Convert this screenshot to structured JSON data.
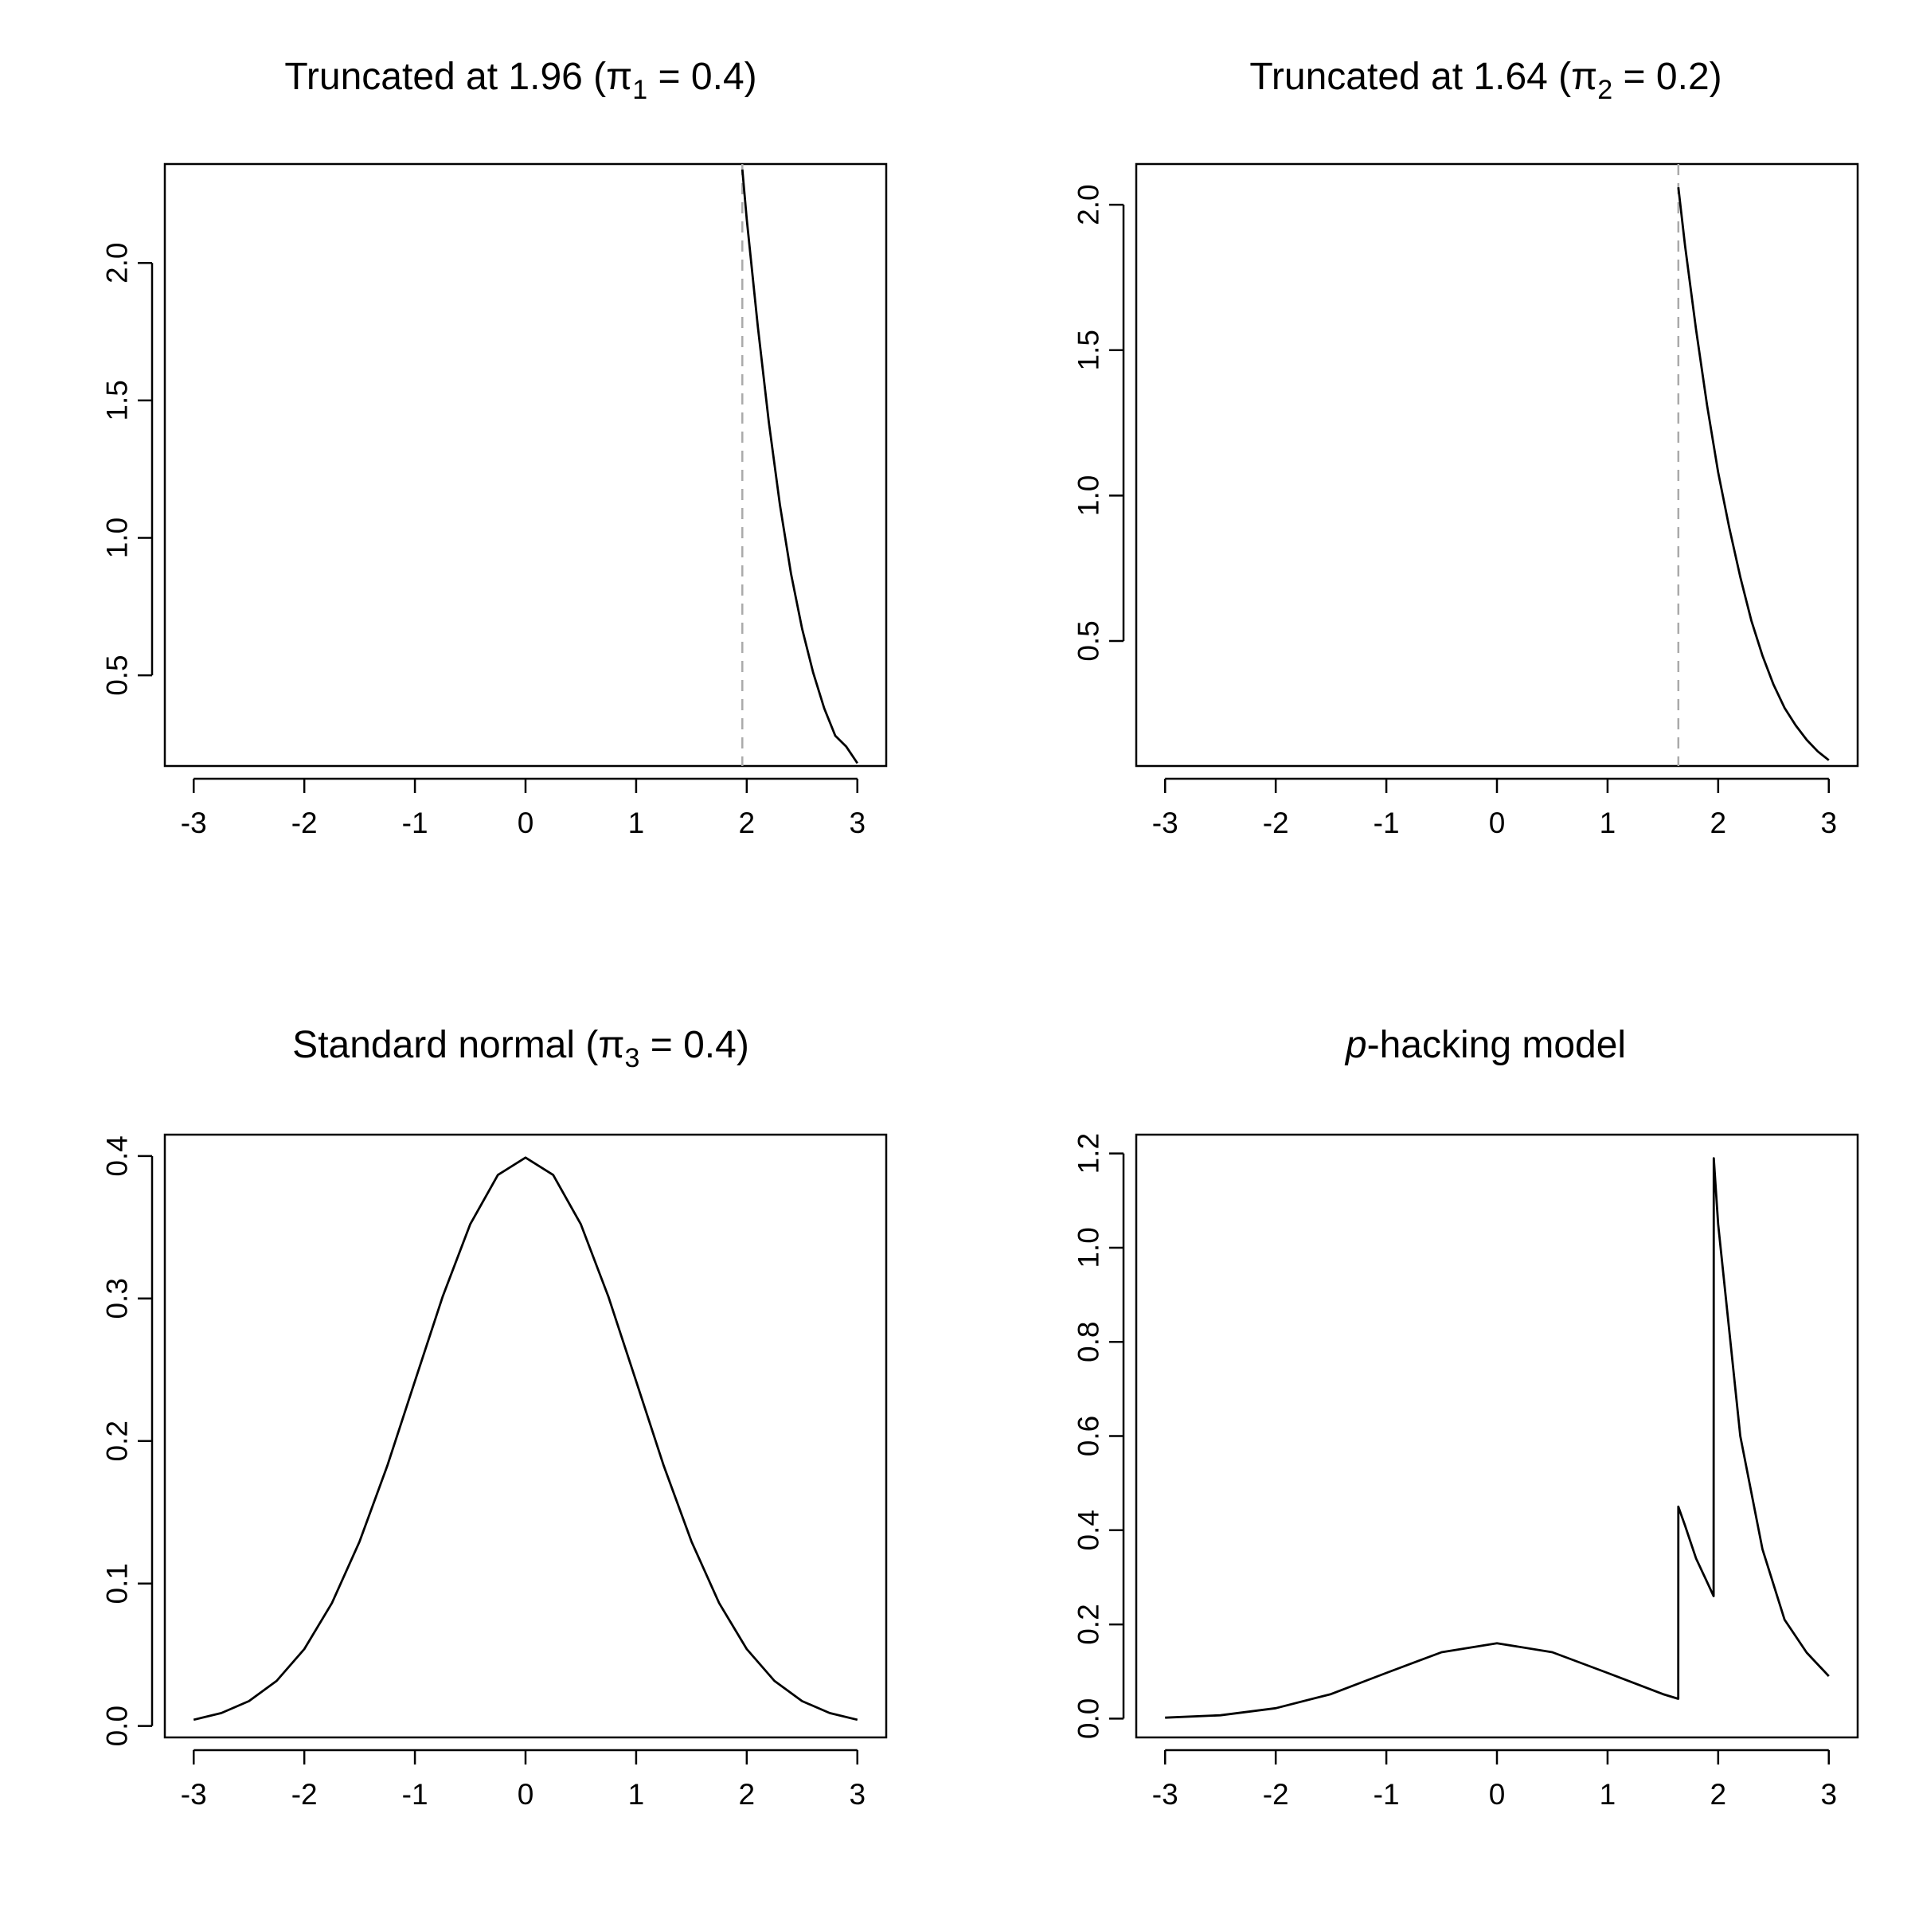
{
  "chart_data": [
    {
      "type": "line",
      "title": "Truncated at 1.96 (π₁ = 0.4)",
      "title_parts": {
        "before": "Truncated at 1.96 (π",
        "sub": "1",
        "after": " = 0.4)"
      },
      "xlabel": "",
      "ylabel": "",
      "xlim": [
        -3,
        3
      ],
      "ylim": [
        0.17,
        2.36
      ],
      "x_ticks": [
        "-3",
        "-2",
        "-1",
        "0",
        "1",
        "2",
        "3"
      ],
      "y_ticks": [
        "0.5",
        "1.0",
        "1.5",
        "2.0"
      ],
      "grid": false,
      "reference_line": {
        "x": 1.96,
        "style": "dashed",
        "color": "#aaaaaa"
      },
      "series": [
        {
          "x": [
            1.96,
            2.0,
            2.1,
            2.2,
            2.3,
            2.4,
            2.5,
            2.6,
            2.7,
            2.8,
            2.9,
            3.0
          ],
          "y": [
            2.34,
            2.16,
            1.77,
            1.42,
            1.12,
            0.87,
            0.67,
            0.51,
            0.38,
            0.28,
            0.24,
            0.18
          ]
        }
      ]
    },
    {
      "type": "line",
      "title": "Truncated at 1.64 (π₂ = 0.2)",
      "title_parts": {
        "before": "Truncated at 1.64 (π",
        "sub": "2",
        "after": " = 0.2)"
      },
      "xlabel": "",
      "ylabel": "",
      "xlim": [
        -3,
        3
      ],
      "ylim": [
        0.07,
        2.14
      ],
      "x_ticks": [
        "-3",
        "-2",
        "-1",
        "0",
        "1",
        "2",
        "3"
      ],
      "y_ticks": [
        "0.5",
        "1.0",
        "1.5",
        "2.0"
      ],
      "grid": false,
      "reference_line": {
        "x": 1.64,
        "style": "dashed",
        "color": "#aaaaaa"
      },
      "series": [
        {
          "x": [
            1.64,
            1.7,
            1.8,
            1.9,
            2.0,
            2.1,
            2.2,
            2.3,
            2.4,
            2.5,
            2.6,
            2.7,
            2.8,
            2.9,
            3.0
          ],
          "y": [
            2.06,
            1.86,
            1.57,
            1.31,
            1.08,
            0.89,
            0.72,
            0.57,
            0.45,
            0.35,
            0.27,
            0.21,
            0.16,
            0.12,
            0.09
          ]
        }
      ]
    },
    {
      "type": "line",
      "title": "Standard normal (π₃ = 0.4)",
      "title_parts": {
        "before": "Standard normal (π",
        "sub": "3",
        "after": " = 0.4)"
      },
      "xlabel": "",
      "ylabel": "",
      "xlim": [
        -3,
        3
      ],
      "ylim": [
        -0.008,
        0.415
      ],
      "x_ticks": [
        "-3",
        "-2",
        "-1",
        "0",
        "1",
        "2",
        "3"
      ],
      "y_ticks": [
        "0.0",
        "0.1",
        "0.2",
        "0.3",
        "0.4"
      ],
      "grid": false,
      "series": [
        {
          "x": [
            -3.0,
            -2.75,
            -2.5,
            -2.25,
            -2.0,
            -1.75,
            -1.5,
            -1.25,
            -1.0,
            -0.75,
            -0.5,
            -0.25,
            0.0,
            0.25,
            0.5,
            0.75,
            1.0,
            1.25,
            1.5,
            1.75,
            2.0,
            2.25,
            2.5,
            2.75,
            3.0
          ],
          "y": [
            0.0044,
            0.0091,
            0.0175,
            0.0317,
            0.054,
            0.0863,
            0.1295,
            0.1826,
            0.242,
            0.3011,
            0.3521,
            0.3867,
            0.3989,
            0.3867,
            0.3521,
            0.3011,
            0.242,
            0.1826,
            0.1295,
            0.0863,
            0.054,
            0.0317,
            0.0175,
            0.0091,
            0.0044
          ]
        }
      ]
    },
    {
      "type": "line",
      "title": "p-hacking model",
      "title_parts": {
        "italic": "p",
        "rest": "-hacking model"
      },
      "xlabel": "",
      "ylabel": "",
      "xlim": [
        -3,
        3
      ],
      "ylim": [
        -0.04,
        1.24
      ],
      "x_ticks": [
        "-3",
        "-2",
        "-1",
        "0",
        "1",
        "2",
        "3"
      ],
      "y_ticks": [
        "0.0",
        "0.2",
        "0.4",
        "0.6",
        "0.8",
        "1.0",
        "1.2"
      ],
      "grid": false,
      "series": [
        {
          "x": [
            -3.0,
            -2.5,
            -2.0,
            -1.5,
            -1.0,
            -0.5,
            0.0,
            0.5,
            1.0,
            1.5,
            1.639,
            1.64,
            1.7,
            1.8,
            1.9,
            1.959,
            1.96,
            2.0,
            2.2,
            2.4,
            2.6,
            2.8,
            3.0
          ],
          "y": [
            0.002,
            0.007,
            0.022,
            0.052,
            0.097,
            0.141,
            0.16,
            0.141,
            0.097,
            0.052,
            0.042,
            0.45,
            0.41,
            0.34,
            0.29,
            0.26,
            1.19,
            1.05,
            0.6,
            0.36,
            0.21,
            0.14,
            0.09
          ]
        }
      ]
    }
  ]
}
